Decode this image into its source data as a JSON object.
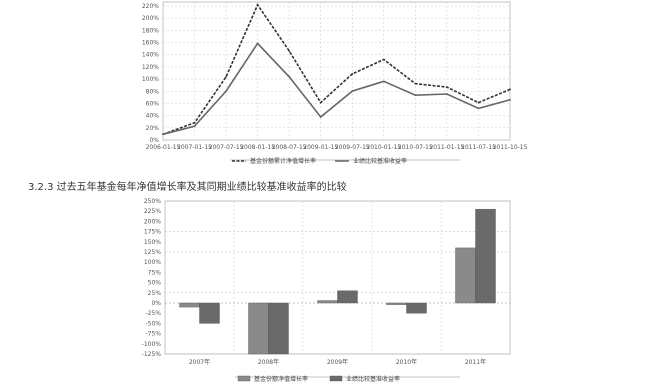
{
  "section_heading": "3.2.3 过去五年基金每年净值增长率及其同期业绩比较基准收益率的比较",
  "chart_data": [
    {
      "type": "line",
      "title": "",
      "xlabel": "",
      "ylabel": "",
      "x": [
        "2006-01-15",
        "2007-01-15",
        "2007-07-15",
        "2008-01-15",
        "2008-07-15",
        "2009-01-15",
        "2009-07-15",
        "2010-01-15",
        "2010-07-15",
        "2011-01-15",
        "2011-07-15",
        "2011-10-15"
      ],
      "x_tick_labels": [
        "2006-01-15",
        "2007-01-15",
        "2007-07-15",
        "2008-01-15",
        "2008-07-15",
        "2009-01-15",
        "2009-07-15",
        "2010-01-15",
        "2010-07-15",
        "2011-01-15",
        "2011-07-15",
        "2011-10-15"
      ],
      "y_tick_labels": [
        "220%",
        "200%",
        "180%",
        "160%",
        "140%",
        "120%",
        "100%",
        "80%",
        "60%",
        "40%",
        "20%",
        "0%"
      ],
      "ylim": [
        -10,
        230
      ],
      "grid": true,
      "legend_position": "bottom",
      "series": [
        {
          "name": "基金份额累计净值增长率",
          "values": [
            0,
            20,
            100,
            225,
            145,
            55,
            105,
            130,
            88,
            82,
            55,
            78
          ],
          "color": "#333333",
          "style": "dashed"
        },
        {
          "name": "业绩比较基准收益率",
          "values": [
            0,
            14,
            75,
            158,
            100,
            30,
            75,
            92,
            68,
            70,
            45,
            60
          ],
          "color": "#666666",
          "style": "solid"
        }
      ]
    },
    {
      "type": "bar",
      "title": "",
      "xlabel": "",
      "ylabel": "",
      "categories": [
        "2007年",
        "2008年",
        "2009年",
        "2010年",
        "2011年"
      ],
      "y_tick_labels": [
        "250%",
        "225%",
        "200%",
        "175%",
        "150%",
        "125%",
        "100%",
        "75%",
        "50%",
        "25%",
        "0%",
        "-25%",
        "-50%",
        "-75%",
        "-100%",
        "-125%"
      ],
      "ylim": [
        -125,
        250
      ],
      "grid": true,
      "legend_position": "bottom",
      "series": [
        {
          "name": "基金份额净值增长率",
          "values": [
            -10,
            -125,
            6,
            -4,
            135
          ],
          "color": "#8a8a8a"
        },
        {
          "name": "业绩比较基准收益率",
          "values": [
            -50,
            -125,
            30,
            -25,
            230
          ],
          "color": "#6a6a6a"
        }
      ]
    }
  ]
}
